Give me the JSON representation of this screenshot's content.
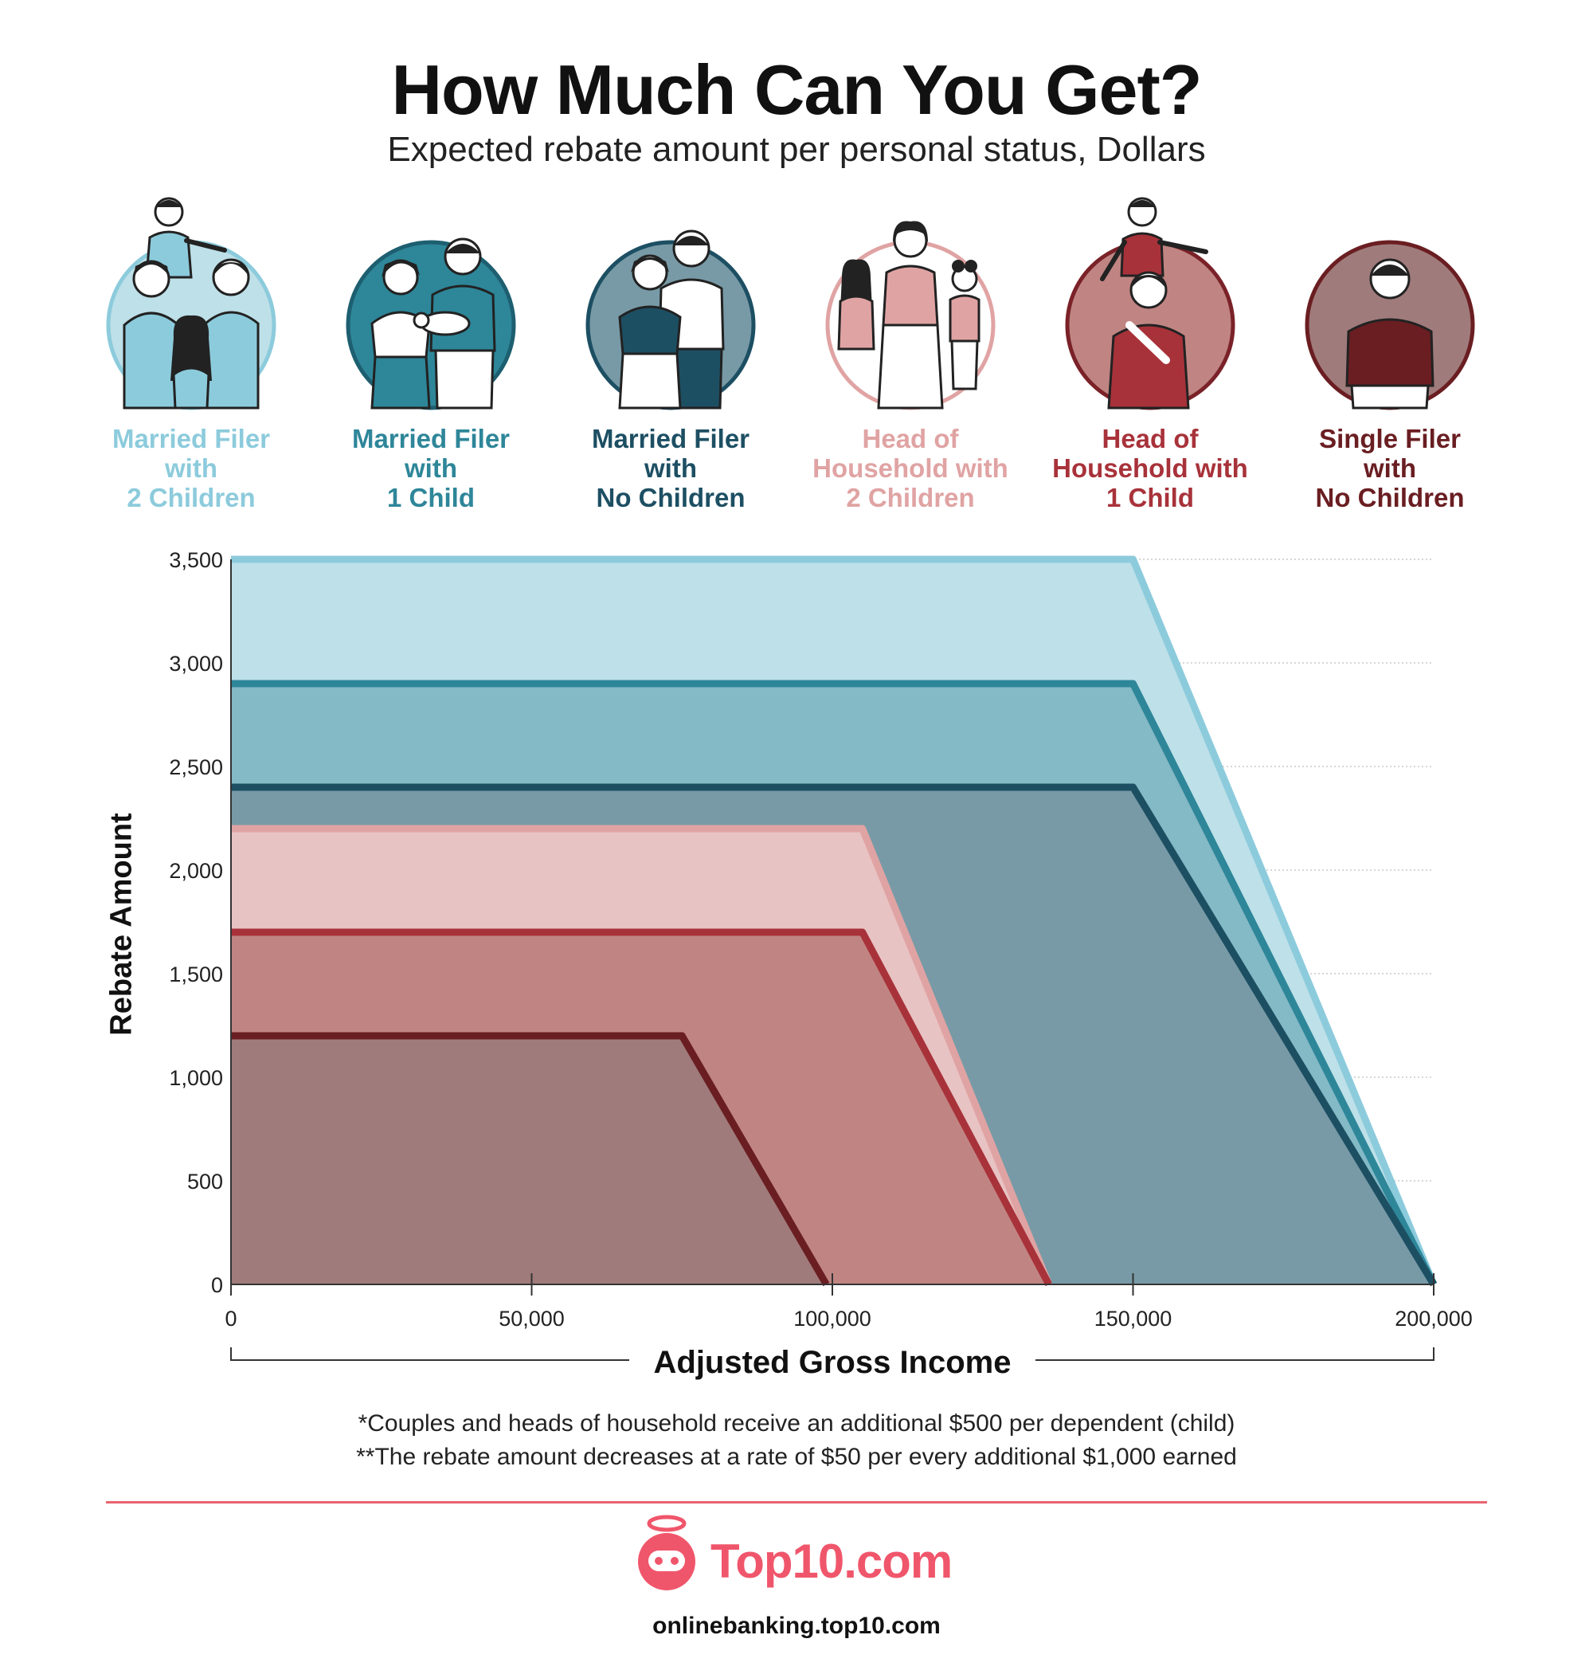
{
  "header": {
    "title": "How Much Can You Get?",
    "subtitle": "Expected rebate amount per personal status, Dollars"
  },
  "personas": [
    {
      "line1": "Married Filer",
      "line2": "with",
      "line3": "2 Children",
      "color": "#8ccbdc",
      "icon": "family-two-children-icon"
    },
    {
      "line1": "Married Filer",
      "line2": "with",
      "line3": "1 Child",
      "color": "#2e8699",
      "icon": "couple-with-baby-icon"
    },
    {
      "line1": "Married Filer",
      "line2": "with",
      "line3": "No Children",
      "color": "#1d4f63",
      "icon": "couple-icon"
    },
    {
      "line1": "Head of",
      "line2": "Household with",
      "line3": "2 Children",
      "color": "#e0a3a3",
      "icon": "parent-two-children-icon"
    },
    {
      "line1": "Head of",
      "line2": "Household with",
      "line3": "1 Child",
      "color": "#a8323a",
      "icon": "parent-one-child-icon"
    },
    {
      "line1": "Single Filer",
      "line2": "with",
      "line3": "No Children",
      "color": "#6a1e22",
      "icon": "single-person-icon"
    }
  ],
  "chart_data": {
    "type": "area",
    "xlabel": "Adjusted Gross Income",
    "ylabel": "Rebate Amount",
    "xlim": [
      0,
      200000
    ],
    "ylim": [
      0,
      3500
    ],
    "x_ticks": [
      "0",
      "50,000",
      "100,000",
      "150,000",
      "200,000"
    ],
    "y_ticks": [
      "0",
      "500",
      "1,000",
      "1,500",
      "2,000",
      "2,500",
      "3,000",
      "3,500"
    ],
    "grid": "horizontal-dotted",
    "series": [
      {
        "name": "Married Filer with 2 Children",
        "fill": "#bee0e8",
        "line": "#8ccbdc",
        "points": [
          [
            0,
            3500
          ],
          [
            150000,
            3500
          ],
          [
            200000,
            0
          ]
        ]
      },
      {
        "name": "Married Filer with 1 Child",
        "fill": "#84b9c6",
        "line": "#2e8699",
        "points": [
          [
            0,
            2900
          ],
          [
            150000,
            2900
          ],
          [
            200000,
            0
          ]
        ]
      },
      {
        "name": "Married Filer with No Children",
        "fill": "#789aa6",
        "line": "#1d4f63",
        "points": [
          [
            0,
            2400
          ],
          [
            150000,
            2400
          ],
          [
            200000,
            0
          ]
        ]
      },
      {
        "name": "Head of Household with 2 Children",
        "fill": "#e8c3c3",
        "line": "#e0a3a3",
        "points": [
          [
            0,
            2200
          ],
          [
            105000,
            2200
          ],
          [
            136000,
            0
          ]
        ]
      },
      {
        "name": "Head of Household with 1 Child",
        "fill": "#c08583",
        "line": "#a8323a",
        "points": [
          [
            0,
            1700
          ],
          [
            105000,
            1700
          ],
          [
            136000,
            0
          ]
        ]
      },
      {
        "name": "Single Filer with No Children",
        "fill": "#a07b7b",
        "line": "#6a1e22",
        "points": [
          [
            0,
            1200
          ],
          [
            75000,
            1200
          ],
          [
            99000,
            0
          ]
        ]
      }
    ]
  },
  "footnotes": [
    "*Couples and heads of household receive an additional $500 per dependent (child)",
    "**The rebate amount decreases at a rate of $50 per every additional $1,000 earned"
  ],
  "brand": {
    "name": "Top10.com",
    "url": "onlinebanking.top10.com",
    "color": "#f0566b",
    "icon": "robot-angel-logo-icon"
  }
}
